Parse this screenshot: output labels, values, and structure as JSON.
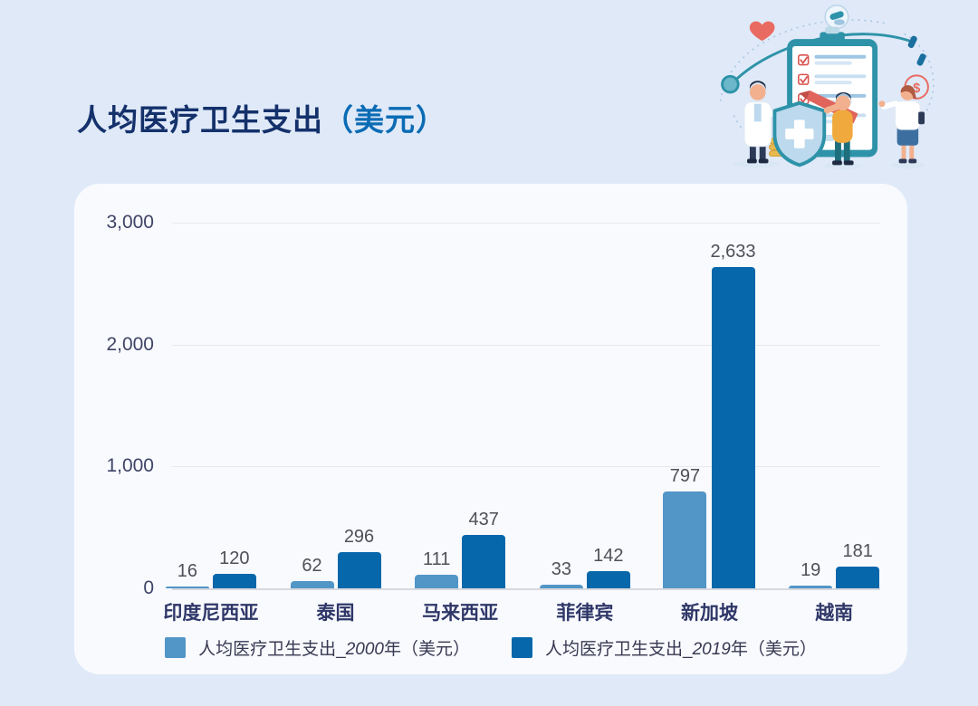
{
  "title": {
    "main": "人均医疗卫生支出",
    "unit": "（美元）"
  },
  "colors": {
    "page_bg": "#dfe9f8",
    "card_bg": "#f8fafd",
    "title_main": "#14316b",
    "title_unit": "#0b6bb4",
    "series_2000": "#5295c7",
    "series_2019": "#0667ab",
    "axis_text": "#3f4468",
    "category_text": "#2f3768",
    "value_text": "#4f4f58",
    "gridline": "#e9e9ee",
    "baseline": "#d8d9de"
  },
  "illustration": {
    "name": "medical-insurance-checklist-illustration"
  },
  "chart_data": {
    "type": "bar",
    "title": "人均医疗卫生支出（美元）",
    "categories": [
      "印度尼西亚",
      "泰国",
      "马来西亚",
      "菲律宾",
      "新加坡",
      "越南"
    ],
    "series": [
      {
        "name": "人均医疗卫生支出_2000年（美元）",
        "values": [
          16,
          62,
          111,
          33,
          797,
          19
        ],
        "value_labels": [
          "16",
          "62",
          "111",
          "33",
          "797",
          "19"
        ],
        "color": "#5295c7"
      },
      {
        "name": "人均医疗卫生支出_2019年（美元）",
        "values": [
          120,
          296,
          437,
          142,
          2633,
          181
        ],
        "value_labels": [
          "120",
          "296",
          "437",
          "142",
          "2,633",
          "181"
        ],
        "color": "#0667ab"
      }
    ],
    "xlabel": "",
    "ylabel": "",
    "ylim": [
      0,
      3000
    ],
    "yticks": [
      {
        "value": 3000,
        "label": "3,000"
      },
      {
        "value": 2000,
        "label": "2,000"
      },
      {
        "value": 1000,
        "label": "1,000"
      },
      {
        "value": 0,
        "label": "0"
      }
    ],
    "grid": "horizontal",
    "legend_position": "bottom",
    "legend": [
      {
        "prefix": "人均医疗卫生支出_",
        "year": "2000",
        "suffix": "年（美元）",
        "color": "#5295c7"
      },
      {
        "prefix": "人均医疗卫生支出_",
        "year": "2019",
        "suffix": "年（美元）",
        "color": "#0667ab"
      }
    ]
  }
}
